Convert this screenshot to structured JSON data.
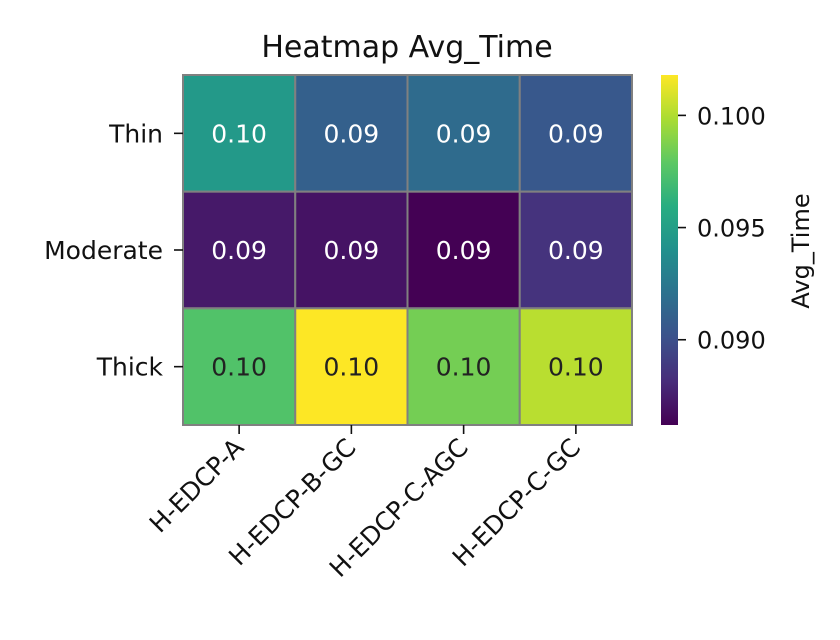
{
  "chart_data": {
    "type": "heatmap",
    "title": "Heatmap Avg_Time",
    "x_categories": [
      "H-EDCP-A",
      "H-EDCP-B-GC",
      "H-EDCP-C-AGC",
      "H-EDCP-C-GC"
    ],
    "y_categories": [
      "Thin",
      "Moderate",
      "Thick"
    ],
    "values": [
      [
        0.0946,
        0.091,
        0.0917,
        0.0905
      ],
      [
        0.0873,
        0.087,
        0.0862,
        0.0885
      ],
      [
        0.0975,
        0.1018,
        0.0985,
        0.1002
      ]
    ],
    "cell_labels": [
      [
        "0.10",
        "0.09",
        "0.09",
        "0.09"
      ],
      [
        "0.09",
        "0.09",
        "0.09",
        "0.09"
      ],
      [
        "0.10",
        "0.10",
        "0.10",
        "0.10"
      ]
    ],
    "colorbar": {
      "label": "Avg_Time",
      "min": 0.0862,
      "max": 0.1018,
      "ticks": [
        0.09,
        0.095,
        0.1
      ],
      "tick_labels": [
        "0.090",
        "0.095",
        "0.100"
      ],
      "colormap": "viridis"
    },
    "grid_line_color": "#808080"
  }
}
